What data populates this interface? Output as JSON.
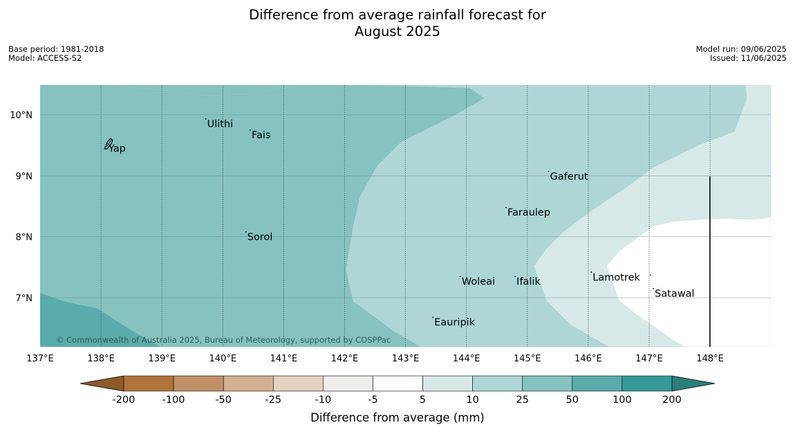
{
  "title_line1": "Difference from average rainfall forecast for",
  "title_line2": "August 2025",
  "base_period": "Base period: 1981-2018",
  "model": "Model: ACCESS-S2",
  "model_run": "Model run: 09/06/2025",
  "issued": "Issued: 11/06/2025",
  "copyright": "© Commonwealth of Australia 2025, Bureau of Meteorology, supported by COSPPac",
  "map": {
    "lon_range": [
      137,
      149
    ],
    "lat_range": [
      6.2,
      10.5
    ],
    "lon_ticks": [
      {
        "value": 137,
        "label": "137°E"
      },
      {
        "value": 138,
        "label": "138°E"
      },
      {
        "value": 139,
        "label": "139°E"
      },
      {
        "value": 140,
        "label": "140°E"
      },
      {
        "value": 141,
        "label": "141°E"
      },
      {
        "value": 142,
        "label": "142°E"
      },
      {
        "value": 143,
        "label": "143°E"
      },
      {
        "value": 144,
        "label": "144°E"
      },
      {
        "value": 145,
        "label": "145°E"
      },
      {
        "value": 146,
        "label": "146°E"
      },
      {
        "value": 147,
        "label": "147°E"
      },
      {
        "value": 148,
        "label": "148°E"
      }
    ],
    "lat_ticks": [
      {
        "value": 10,
        "label": "10°N"
      },
      {
        "value": 9,
        "label": "9°N"
      },
      {
        "value": 8,
        "label": "8°N"
      },
      {
        "value": 7,
        "label": "7°N"
      }
    ],
    "places": [
      {
        "name": "Yap",
        "lon": 138.1,
        "lat": 9.53
      },
      {
        "name": "Ulithi",
        "lon": 139.72,
        "lat": 9.93
      },
      {
        "name": "Fais",
        "lon": 140.45,
        "lat": 9.75
      },
      {
        "name": "Sorol",
        "lon": 140.38,
        "lat": 8.08
      },
      {
        "name": "Gaferut",
        "lon": 145.35,
        "lat": 9.07
      },
      {
        "name": "Faraulep",
        "lon": 144.65,
        "lat": 8.48
      },
      {
        "name": "Woleai",
        "lon": 143.9,
        "lat": 7.35
      },
      {
        "name": "Ifalik",
        "lon": 144.8,
        "lat": 7.35
      },
      {
        "name": "Lamotrek",
        "lon": 146.05,
        "lat": 7.42
      },
      {
        "name": "Satawal",
        "lon": 147.07,
        "lat": 7.15
      },
      {
        "name": "Eauripik",
        "lon": 143.45,
        "lat": 6.68
      }
    ]
  },
  "colorbar": {
    "label": "Difference from average (mm)",
    "ticks": [
      "-200",
      "-100",
      "-50",
      "-25",
      "-10",
      "-5",
      "5",
      "10",
      "25",
      "50",
      "100",
      "200"
    ],
    "colors": [
      "#af743c",
      "#c09068",
      "#d4b092",
      "#e4d2c2",
      "#f1eeea",
      "#ffffff",
      "#d6e9e8",
      "#aed6d6",
      "#85c2c0",
      "#5aabab",
      "#359a98"
    ],
    "low_extend_color": "#8e5a2a",
    "high_extend_color": "#2c7f7d"
  },
  "colors": {
    "band_50_100": "#5aabab",
    "band_25_50": "#85c2c0",
    "band_10_25": "#aed6d6",
    "band_5_10": "#d6e9e8",
    "band_neutral": "#ffffff"
  }
}
